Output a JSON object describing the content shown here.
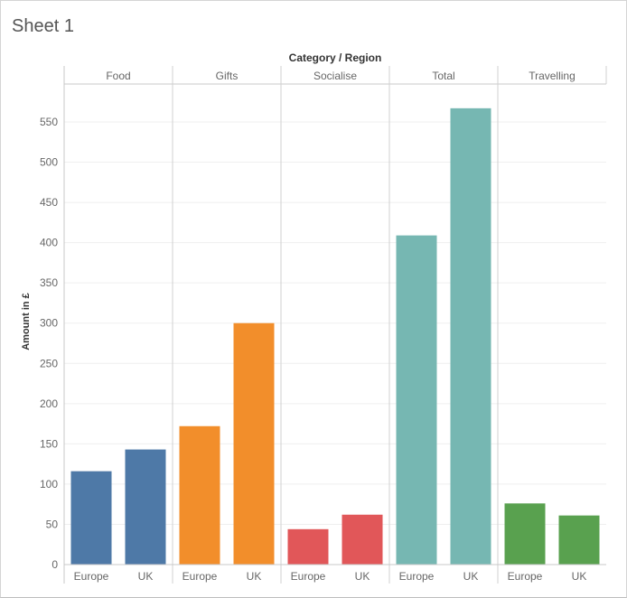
{
  "sheet": {
    "title": "Sheet 1"
  },
  "chart_data": {
    "type": "bar",
    "title": "Category / Region",
    "ylabel": "Amount in £",
    "ylim": [
      0,
      580
    ],
    "yticks": [
      0,
      50,
      100,
      150,
      200,
      250,
      300,
      350,
      400,
      450,
      500,
      550
    ],
    "grid": true,
    "panels": [
      {
        "category": "Food",
        "color": "#4e79a7",
        "regions": [
          "Europe",
          "UK"
        ],
        "values": [
          116,
          143
        ]
      },
      {
        "category": "Gifts",
        "color": "#f28e2b",
        "regions": [
          "Europe",
          "UK"
        ],
        "values": [
          172,
          300
        ]
      },
      {
        "category": "Socialise",
        "color": "#e15759",
        "regions": [
          "Europe",
          "UK"
        ],
        "values": [
          44,
          62
        ]
      },
      {
        "category": "Total",
        "color": "#76b7b2",
        "regions": [
          "Europe",
          "UK"
        ],
        "values": [
          409,
          567
        ]
      },
      {
        "category": "Travelling",
        "color": "#59a14f",
        "regions": [
          "Europe",
          "UK"
        ],
        "values": [
          76,
          61
        ]
      }
    ]
  }
}
